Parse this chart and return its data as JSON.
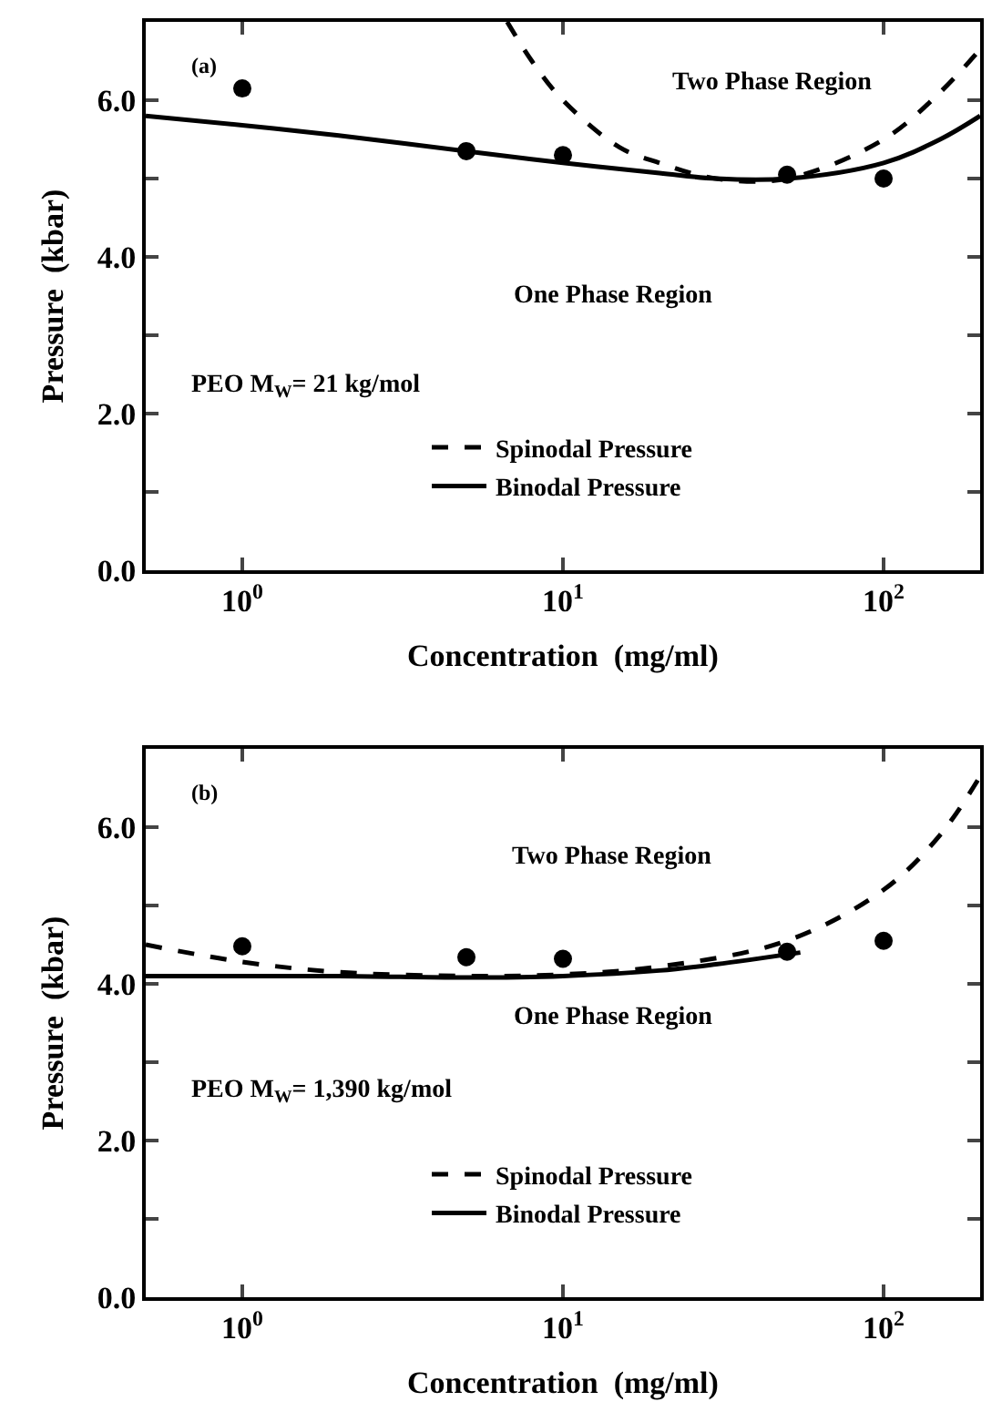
{
  "chart_data": [
    {
      "type": "line",
      "xlabel": "Concentration  (mg/ml)",
      "ylabel": "Pressure  (kbar)",
      "log": "x",
      "xlim": [
        0.5,
        200
      ],
      "xticks": [
        {
          "value": 1,
          "label": "10$^{0}$"
        },
        {
          "value": 10,
          "label": "10$^{1}$"
        },
        {
          "value": 100,
          "label": "10$^{2}$"
        }
      ],
      "ylim": [
        0,
        7
      ],
      "yticks": [
        {
          "value": 0,
          "label": "0.0"
        },
        {
          "value": 1,
          "label": null
        },
        {
          "value": 2,
          "label": "2.0"
        },
        {
          "value": 3,
          "label": null
        },
        {
          "value": 4,
          "label": "4.0"
        },
        {
          "value": 5,
          "label": null
        },
        {
          "value": 6,
          "label": "6.0"
        }
      ],
      "legend": "bottom",
      "annotations": [
        "(a)",
        "Two Phase Region",
        "One Phase Region",
        "PEO M$_{W}$= 21 kg/mol"
      ],
      "series": [
        {
          "name": "Spinodal Pressure",
          "line_style": "dashed",
          "color": "#000000",
          "x": [
            6.7,
            8,
            10,
            15,
            20,
            30,
            50,
            100,
            150,
            200
          ],
          "values": [
            7.0,
            6.5,
            6.0,
            5.4,
            5.2,
            5.0,
            5.0,
            5.5,
            6.1,
            6.65
          ]
        },
        {
          "name": "Binodal Pressure",
          "line_style": "solid",
          "color": "#000000",
          "x": [
            0.5,
            1,
            2,
            5,
            10,
            20,
            30,
            50,
            100,
            150,
            200
          ],
          "values": [
            5.8,
            5.68,
            5.55,
            5.35,
            5.2,
            5.07,
            5.0,
            5.0,
            5.2,
            5.5,
            5.8
          ]
        },
        {
          "type": "scatter",
          "marker": "circle",
          "color": "#000000",
          "x": [
            1,
            5,
            10,
            50,
            100
          ],
          "values": [
            6.15,
            5.35,
            5.3,
            5.05,
            5.0
          ]
        }
      ]
    },
    {
      "type": "line",
      "xlabel": "Concentration  (mg/ml)",
      "ylabel": "Pressure  (kbar)",
      "log": "x",
      "xlim": [
        0.5,
        200
      ],
      "xticks": [
        {
          "value": 1,
          "label": "10$^{0}$"
        },
        {
          "value": 10,
          "label": "10$^{1}$"
        },
        {
          "value": 100,
          "label": "10$^{2}$"
        }
      ],
      "ylim": [
        0,
        7
      ],
      "yticks": [
        {
          "value": 0,
          "label": "0.0"
        },
        {
          "value": 1,
          "label": null
        },
        {
          "value": 2,
          "label": "2.0"
        },
        {
          "value": 3,
          "label": null
        },
        {
          "value": 4,
          "label": "4.0"
        },
        {
          "value": 5,
          "label": null
        },
        {
          "value": 6,
          "label": "6.0"
        }
      ],
      "legend": "bottom",
      "annotations": [
        "(b)",
        "Two Phase Region",
        "One Phase Region",
        "PEO M$_{W}$= 1,390 kg/mol"
      ],
      "series": [
        {
          "name": "Spinodal Pressure",
          "line_style": "dashed",
          "color": "#000000",
          "x": [
            0.5,
            1,
            2,
            5,
            10,
            20,
            50,
            100,
            150,
            200
          ],
          "values": [
            4.5,
            4.28,
            4.15,
            4.1,
            4.12,
            4.22,
            4.55,
            5.2,
            5.9,
            6.65
          ]
        },
        {
          "name": "Binodal Pressure",
          "line_style": "solid",
          "color": "#000000",
          "x": [
            0.5,
            2,
            5,
            10,
            20,
            30,
            55
          ],
          "values": [
            4.1,
            4.1,
            4.08,
            4.1,
            4.17,
            4.25,
            4.4
          ]
        },
        {
          "type": "scatter",
          "marker": "circle",
          "color": "#000000",
          "x": [
            1,
            5,
            10,
            50,
            100
          ],
          "values": [
            4.48,
            4.34,
            4.32,
            4.41,
            4.55
          ]
        }
      ]
    }
  ]
}
